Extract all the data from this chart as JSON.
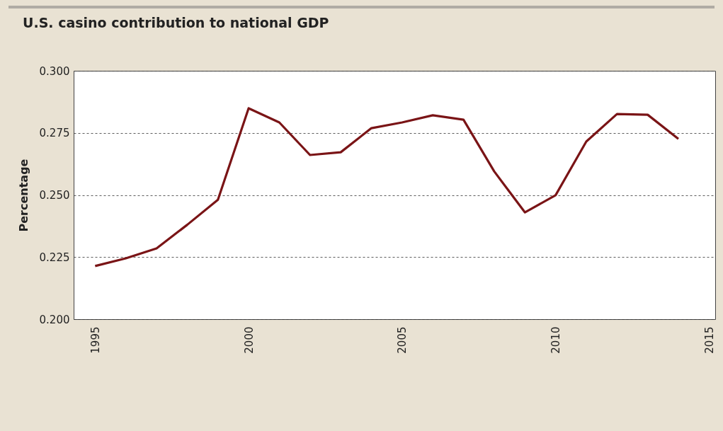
{
  "chart_data": {
    "type": "line",
    "title": "U.S. casino contribution to national GDP",
    "ylabel": "Percentage",
    "x": [
      1995,
      1996,
      1997,
      1998,
      1999,
      2000,
      2001,
      2002,
      2003,
      2004,
      2005,
      2006,
      2007,
      2008,
      2009,
      2010,
      2011,
      2012,
      2013,
      2014
    ],
    "series": [
      {
        "color": "#7a1416",
        "values": [
          0.2214,
          0.2245,
          0.2285,
          0.238,
          0.2481,
          0.2849,
          0.2792,
          0.2661,
          0.2672,
          0.2769,
          0.2792,
          0.2821,
          0.2803,
          0.2595,
          0.243,
          0.2499,
          0.2715,
          0.2826,
          0.2823,
          0.2726
        ]
      }
    ],
    "xlim": [
      1994.3,
      2015.2
    ],
    "xticks": [
      1995,
      2000,
      2005,
      2010,
      2015
    ],
    "ylim": [
      0.2,
      0.3
    ],
    "yticks": [
      {
        "value": 0.2,
        "label": "0.200"
      },
      {
        "value": 0.225,
        "label": "0.225"
      },
      {
        "value": 0.25,
        "label": "0.250"
      },
      {
        "value": 0.275,
        "label": "0.275"
      },
      {
        "value": 0.3,
        "label": "0.300"
      }
    ],
    "grid": "y",
    "line_style": "solid",
    "marker": "none"
  }
}
